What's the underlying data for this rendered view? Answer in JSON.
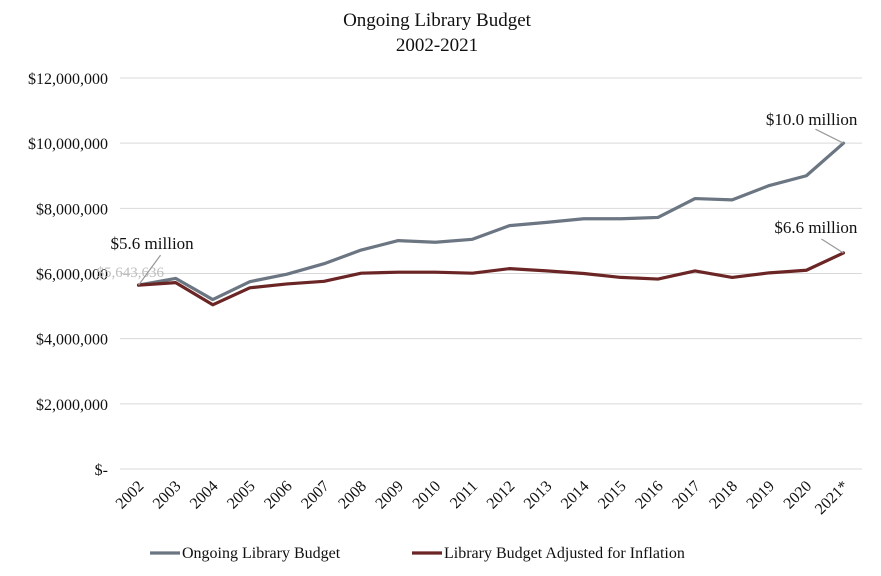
{
  "chart_data": {
    "type": "line",
    "title": "Ongoing Library Budget",
    "subtitle": "2002-2021",
    "xlabel": "",
    "ylabel": "",
    "categories": [
      "2002",
      "2003",
      "2004",
      "2005",
      "2006",
      "2007",
      "2008",
      "2009",
      "2010",
      "2011",
      "2012",
      "2013",
      "2014",
      "2015",
      "2016",
      "2017",
      "2018",
      "2019",
      "2020",
      "2021*"
    ],
    "ylim": [
      0,
      12000000
    ],
    "yticks": [
      {
        "value": 0,
        "label": "$-"
      },
      {
        "value": 2000000,
        "label": "$2,000,000"
      },
      {
        "value": 4000000,
        "label": "$4,000,000"
      },
      {
        "value": 6000000,
        "label": "$6,000,000"
      },
      {
        "value": 8000000,
        "label": "$8,000,000"
      },
      {
        "value": 10000000,
        "label": "$10,000,000"
      },
      {
        "value": 12000000,
        "label": "$12,000,000"
      }
    ],
    "grid": true,
    "legend_position": "bottom",
    "series": [
      {
        "name": "Ongoing Library Budget",
        "color": "#6b7682",
        "values": [
          5643636,
          5850000,
          5200000,
          5750000,
          5980000,
          6300000,
          6720000,
          7010000,
          6960000,
          7050000,
          7470000,
          7570000,
          7680000,
          7680000,
          7720000,
          8300000,
          8260000,
          8700000,
          9000000,
          10000000
        ]
      },
      {
        "name": "Library Budget Adjusted for Inflation",
        "color": "#6b2525",
        "values": [
          5643636,
          5720000,
          5040000,
          5560000,
          5680000,
          5760000,
          6010000,
          6040000,
          6040000,
          6010000,
          6150000,
          6080000,
          6000000,
          5880000,
          5830000,
          6080000,
          5880000,
          6020000,
          6100000,
          6630000
        ]
      }
    ],
    "annotations": [
      {
        "text": "$5.6 million",
        "category": "2002",
        "value": 5643636
      },
      {
        "text": "$10.0 million",
        "category": "2021*",
        "value": 10000000
      },
      {
        "text": "$6.6 million",
        "category": "2021*",
        "value": 6630000
      }
    ],
    "data_label_ghost": "$5,643,636"
  }
}
